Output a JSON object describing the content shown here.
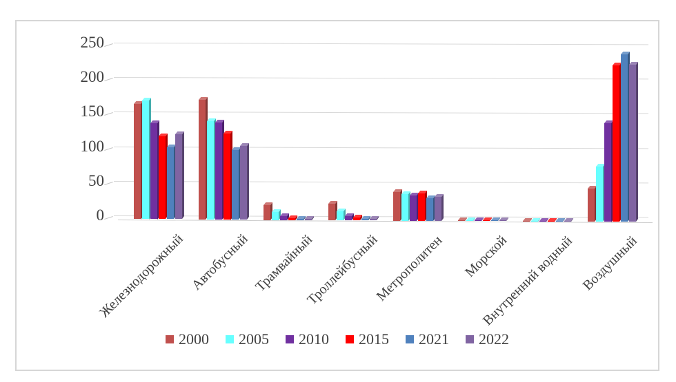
{
  "chart_data": {
    "type": "bar",
    "style": "3d-clustered-column",
    "title": "",
    "xlabel": "",
    "ylabel": "",
    "categories": [
      "Железнодорожный",
      "Автобусный",
      "Трамвайный",
      "Троллейбусный",
      "Метрополитен",
      "Морской",
      "Внутренний водный",
      "Воздушный"
    ],
    "series": [
      {
        "name": "2000",
        "color": "#C0504D",
        "values": [
          167,
          173,
          22,
          24,
          42,
          1,
          1,
          48
        ]
      },
      {
        "name": "2005",
        "color": "#66FFFF",
        "values": [
          172,
          142,
          12,
          13,
          39,
          1,
          1,
          80
        ]
      },
      {
        "name": "2010",
        "color": "#7030A0",
        "values": [
          139,
          140,
          6,
          6,
          37,
          1,
          1,
          143
        ]
      },
      {
        "name": "2015",
        "color": "#FF0000",
        "values": [
          120,
          125,
          3,
          4,
          40,
          1,
          1,
          226
        ]
      },
      {
        "name": "2021",
        "color": "#4F81BD",
        "values": [
          104,
          101,
          2,
          2,
          33,
          1,
          1,
          242
        ]
      },
      {
        "name": "2022",
        "color": "#8064A2",
        "values": [
          123,
          107,
          2,
          2,
          35,
          1,
          1,
          227
        ]
      }
    ],
    "y_ticks": [
      0,
      50,
      100,
      150,
      200,
      250
    ],
    "ylim": [
      0,
      250
    ],
    "grid": true,
    "legend_position": "bottom",
    "gridline_color": "#D9D9D9",
    "text_color": "#404040"
  }
}
